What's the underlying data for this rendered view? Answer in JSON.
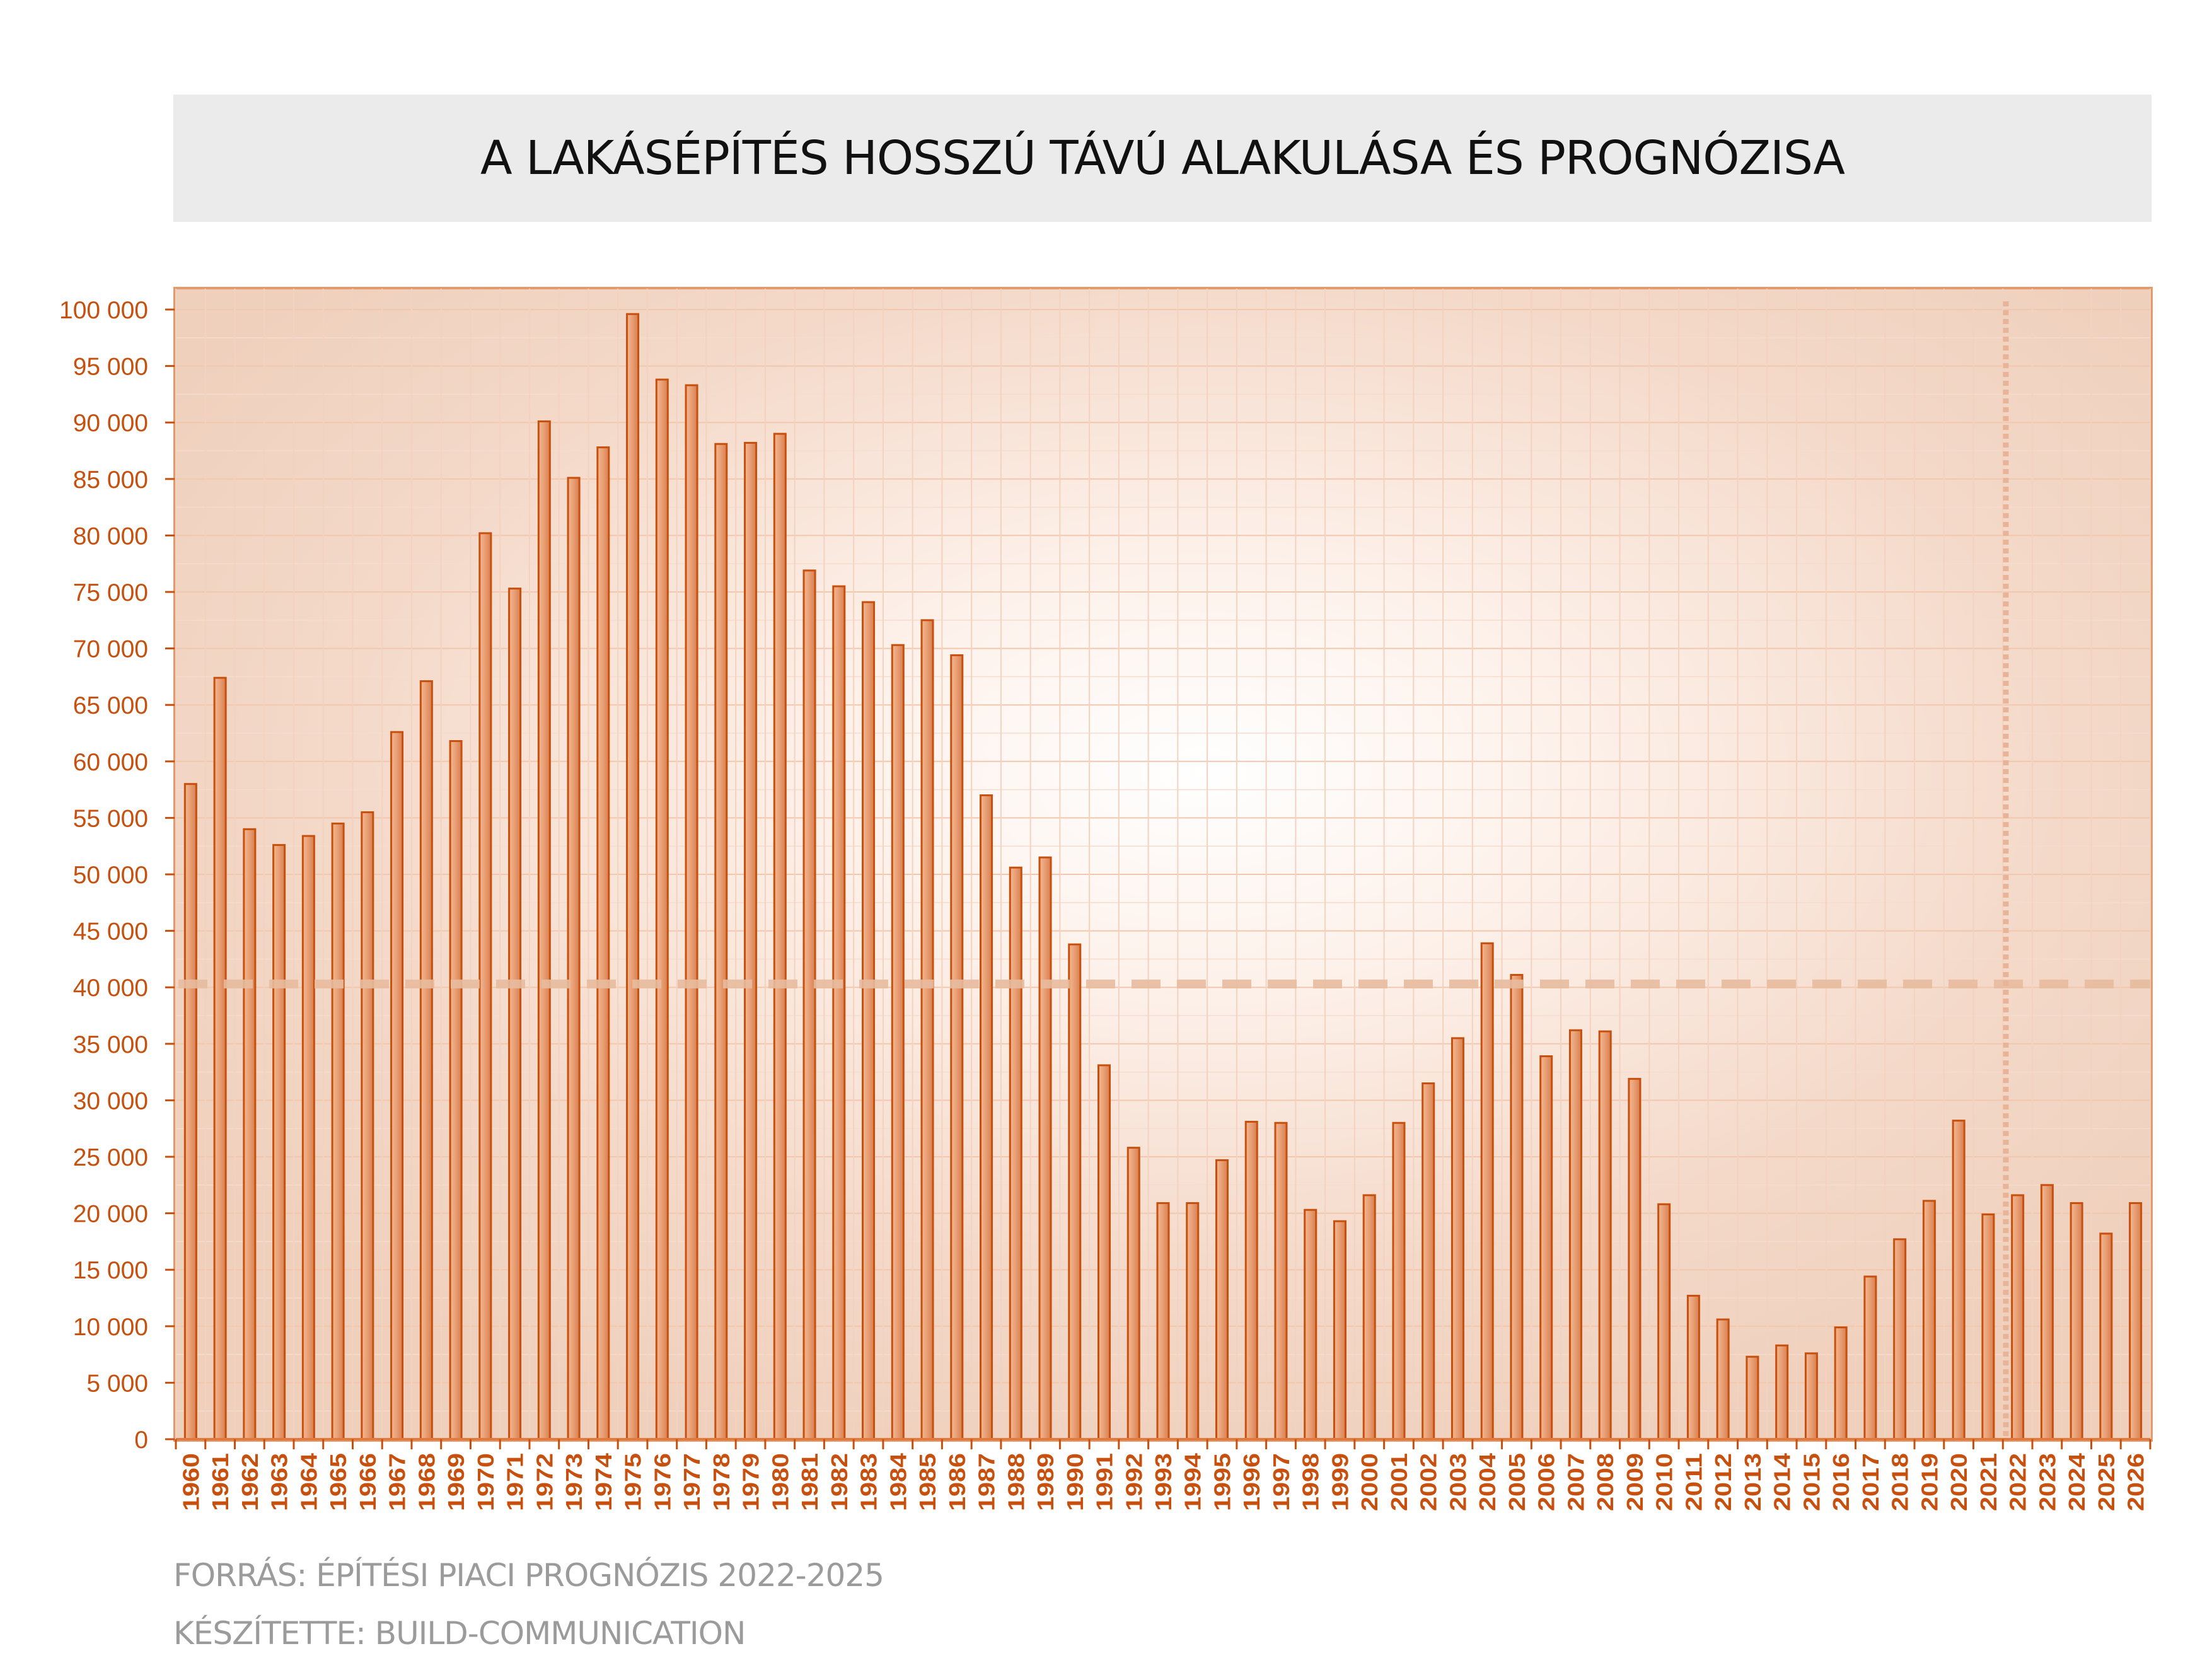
{
  "title": "A LAKÁSÉPÍTÉS HOSSZÚ TÁVÚ ALAKULÁSA ÉS PROGNÓZISA",
  "footer": {
    "source": "FORRÁS: ÉPÍTÉSI PIACI PROGNÓZIS 2022-2025",
    "author": "KÉSZÍTETTE: BUILD-COMMUNICATION"
  },
  "colors": {
    "bar_fill": "#e3956a",
    "bar_stroke": "#c8500e",
    "axis_text": "#c8500e",
    "plot_border": "#e69a6c",
    "reference_line": "#e8bc9f"
  },
  "chart_data": {
    "type": "bar",
    "categories": [
      "1960",
      "1961",
      "1962",
      "1963",
      "1964",
      "1965",
      "1966",
      "1967",
      "1968",
      "1969",
      "1970",
      "1971",
      "1972",
      "1973",
      "1974",
      "1975",
      "1976",
      "1977",
      "1978",
      "1979",
      "1980",
      "1981",
      "1982",
      "1983",
      "1984",
      "1985",
      "1986",
      "1987",
      "1988",
      "1989",
      "1990",
      "1991",
      "1992",
      "1993",
      "1994",
      "1995",
      "1996",
      "1997",
      "1998",
      "1999",
      "2000",
      "2001",
      "2002",
      "2003",
      "2004",
      "2005",
      "2006",
      "2007",
      "2008",
      "2009",
      "2010",
      "2011",
      "2012",
      "2013",
      "2014",
      "2015",
      "2016",
      "2017",
      "2018",
      "2019",
      "2020",
      "2021",
      "2022",
      "2023",
      "2024",
      "2025",
      "2026"
    ],
    "values": [
      58000,
      67400,
      54000,
      52600,
      53400,
      54500,
      55500,
      62600,
      67100,
      61800,
      80200,
      75300,
      90100,
      85100,
      87800,
      99600,
      93800,
      93300,
      88100,
      88200,
      89000,
      76900,
      75500,
      74100,
      70300,
      72500,
      69400,
      57000,
      50600,
      51500,
      43800,
      33100,
      25800,
      20900,
      20900,
      24700,
      28100,
      28000,
      20300,
      19300,
      21600,
      28000,
      31500,
      35500,
      43900,
      41100,
      33900,
      36200,
      36100,
      31900,
      20800,
      12700,
      10600,
      7300,
      8300,
      7600,
      9900,
      14400,
      17700,
      21100,
      28200,
      19900,
      21600,
      22500,
      20900,
      18200,
      20900
    ],
    "ylim": [
      0,
      100000
    ],
    "yticks": [
      0,
      5000,
      10000,
      15000,
      20000,
      25000,
      30000,
      35000,
      40000,
      45000,
      50000,
      55000,
      60000,
      65000,
      70000,
      75000,
      80000,
      85000,
      90000,
      95000,
      100000
    ],
    "ytick_labels": [
      "0",
      "5 000",
      "10 000",
      "15 000",
      "20 000",
      "25 000",
      "30 000",
      "35 000",
      "40 000",
      "45 000",
      "50 000",
      "55 000",
      "60 000",
      "65 000",
      "70 000",
      "75 000",
      "80 000",
      "85 000",
      "90 000",
      "95 000",
      "100 000"
    ],
    "reference_line_value": 40300,
    "forecast_divider_after": "2021",
    "grid": true,
    "legend": "none"
  }
}
